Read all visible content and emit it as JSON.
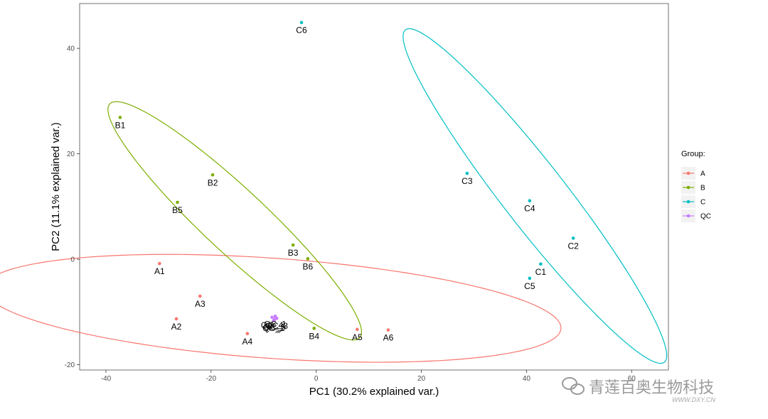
{
  "chart_data": {
    "type": "scatter",
    "xlabel": "PC1 (30.2% explained var.)",
    "ylabel": "PC2 (11.1% explained var.)",
    "xlim": [
      -45,
      67
    ],
    "ylim": [
      -21,
      48.5
    ],
    "x_ticks": [
      -40,
      -20,
      0,
      20,
      40,
      60
    ],
    "y_ticks": [
      -20,
      0,
      20,
      40
    ],
    "grid": false,
    "legend": {
      "title": "Group:",
      "position": "right"
    },
    "series": [
      {
        "name": "A",
        "color": "#F8766D",
        "points": [
          {
            "label": "A1",
            "x": -29.8,
            "y": -0.8
          },
          {
            "label": "A2",
            "x": -26.6,
            "y": -11.3
          },
          {
            "label": "A3",
            "x": -22.1,
            "y": -7.0
          },
          {
            "label": "A4",
            "x": -13.1,
            "y": -14.1
          },
          {
            "label": "A5",
            "x": 7.8,
            "y": -13.3
          },
          {
            "label": "A6",
            "x": 13.7,
            "y": -13.4
          }
        ],
        "ellipse": {
          "cx": -8.3,
          "cy": -9.3,
          "rx": 55.0,
          "ry": 9.5,
          "angle_deg": -4
        }
      },
      {
        "name": "B",
        "color": "#7CAE00",
        "points": [
          {
            "label": "B1",
            "x": -37.3,
            "y": 26.9
          },
          {
            "label": "B2",
            "x": -19.7,
            "y": 16.0
          },
          {
            "label": "B3",
            "x": -4.4,
            "y": 2.7
          },
          {
            "label": "B4",
            "x": -0.4,
            "y": -13.1
          },
          {
            "label": "B5",
            "x": -26.4,
            "y": 10.8
          },
          {
            "label": "B6",
            "x": -1.6,
            "y": 0.1
          }
        ],
        "ellipse": {
          "cx": -15.5,
          "cy": 7.3,
          "rx": 32.5,
          "ry": 6.0,
          "angle_deg": -43
        }
      },
      {
        "name": "C",
        "color": "#00BFC4",
        "points": [
          {
            "label": "C1",
            "x": 42.7,
            "y": -0.9
          },
          {
            "label": "C2",
            "x": 48.9,
            "y": 4.0
          },
          {
            "label": "C3",
            "x": 28.7,
            "y": 16.3
          },
          {
            "label": "C4",
            "x": 40.6,
            "y": 11.1
          },
          {
            "label": "C5",
            "x": 40.6,
            "y": -3.6
          },
          {
            "label": "C6",
            "x": -2.8,
            "y": 44.9
          }
        ],
        "ellipse": {
          "cx": 41.6,
          "cy": 12.0,
          "rx": 40.0,
          "ry": 6.0,
          "angle_deg": -52
        }
      },
      {
        "name": "QC",
        "color": "#C77CFF",
        "points": [
          {
            "label": "QC_1",
            "x": -7.8,
            "y": -10.8
          },
          {
            "label": "QC_2",
            "x": -8.1,
            "y": -11.6
          },
          {
            "label": "QC_3",
            "x": -7.5,
            "y": -11.2
          },
          {
            "label": "QC_4",
            "x": -8.4,
            "y": -11.0
          },
          {
            "label": "QC_5",
            "x": -7.9,
            "y": -11.4
          }
        ]
      }
    ]
  },
  "watermark": {
    "text": "青莲百奥生物科技",
    "site": "WWW.DXY.CN",
    "wechat_icon": "wechat-icon"
  }
}
